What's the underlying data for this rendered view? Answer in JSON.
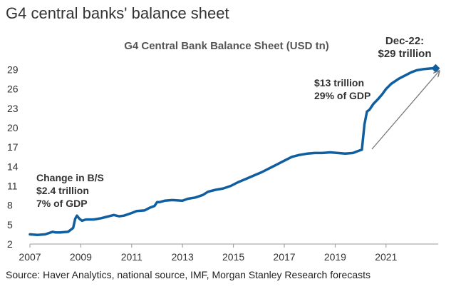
{
  "page_title": "G4 central banks' balance sheet",
  "source": "Source: Haver Analytics, national source, IMF, Morgan Stanley Research forecasts",
  "colors": {
    "line": "#0f5ea0",
    "arrow": "#777777",
    "axis": "#999999",
    "text": "#333333"
  },
  "chart_data": {
    "type": "line",
    "title": "G4 Central Bank Balance Sheet (USD tn)",
    "xlabel": "",
    "ylabel": "",
    "xlim": [
      2007.0,
      2023.05
    ],
    "ylim": [
      2,
      30.5
    ],
    "xticks": [
      2007,
      2009,
      2011,
      2013,
      2015,
      2017,
      2019,
      2021
    ],
    "yticks": [
      2,
      5,
      8,
      11,
      14,
      17,
      20,
      23,
      26,
      29
    ],
    "grid": false,
    "legend": "none",
    "series": [
      {
        "x": [
          2007.0,
          2007.3,
          2007.6,
          2007.9,
          2008.0,
          2008.2,
          2008.5,
          2008.7,
          2008.78,
          2008.85,
          2008.95,
          2009.05,
          2009.2,
          2009.5,
          2009.8,
          2010.0,
          2010.3,
          2010.5,
          2010.7,
          2011.0,
          2011.2,
          2011.5,
          2011.7,
          2011.9,
          2012.0,
          2012.1,
          2012.3,
          2012.6,
          2013.0,
          2013.2,
          2013.5,
          2013.8,
          2014.0,
          2014.3,
          2014.6,
          2014.9,
          2015.2,
          2015.5,
          2015.8,
          2016.1,
          2016.4,
          2016.7,
          2017.0,
          2017.3,
          2017.6,
          2017.9,
          2018.2,
          2018.5,
          2018.8,
          2019.1,
          2019.4,
          2019.7,
          2019.9,
          2020.05,
          2020.15,
          2020.25,
          2020.35,
          2020.5,
          2020.7,
          2020.85,
          2021.0,
          2021.2,
          2021.5,
          2021.8,
          2022.0,
          2022.2,
          2022.5,
          2022.8,
          2022.95
        ],
        "y": [
          3.5,
          3.4,
          3.5,
          3.9,
          3.8,
          3.8,
          3.9,
          4.5,
          5.9,
          6.4,
          5.9,
          5.6,
          5.8,
          5.8,
          6.0,
          6.2,
          6.5,
          6.3,
          6.4,
          6.8,
          7.1,
          7.2,
          7.6,
          7.9,
          8.5,
          8.5,
          8.7,
          8.8,
          8.7,
          9.0,
          9.2,
          9.6,
          10.1,
          10.4,
          10.6,
          11.0,
          11.6,
          12.1,
          12.6,
          13.1,
          13.7,
          14.3,
          14.9,
          15.5,
          15.8,
          16.0,
          16.1,
          16.1,
          16.2,
          16.1,
          16.0,
          16.1,
          16.4,
          16.6,
          20.5,
          22.5,
          22.8,
          23.7,
          24.5,
          25.2,
          26.0,
          26.8,
          27.6,
          28.2,
          28.6,
          28.9,
          29.1,
          29.2,
          29.2
        ]
      }
    ],
    "annotations": {
      "gfc": [
        "Change in B/S",
        "$2.4 trillion",
        "7% of GDP"
      ],
      "covid": [
        "$13 trillion",
        "29% of GDP"
      ],
      "latest": [
        "Dec-22:",
        "$29 trillion"
      ]
    }
  }
}
